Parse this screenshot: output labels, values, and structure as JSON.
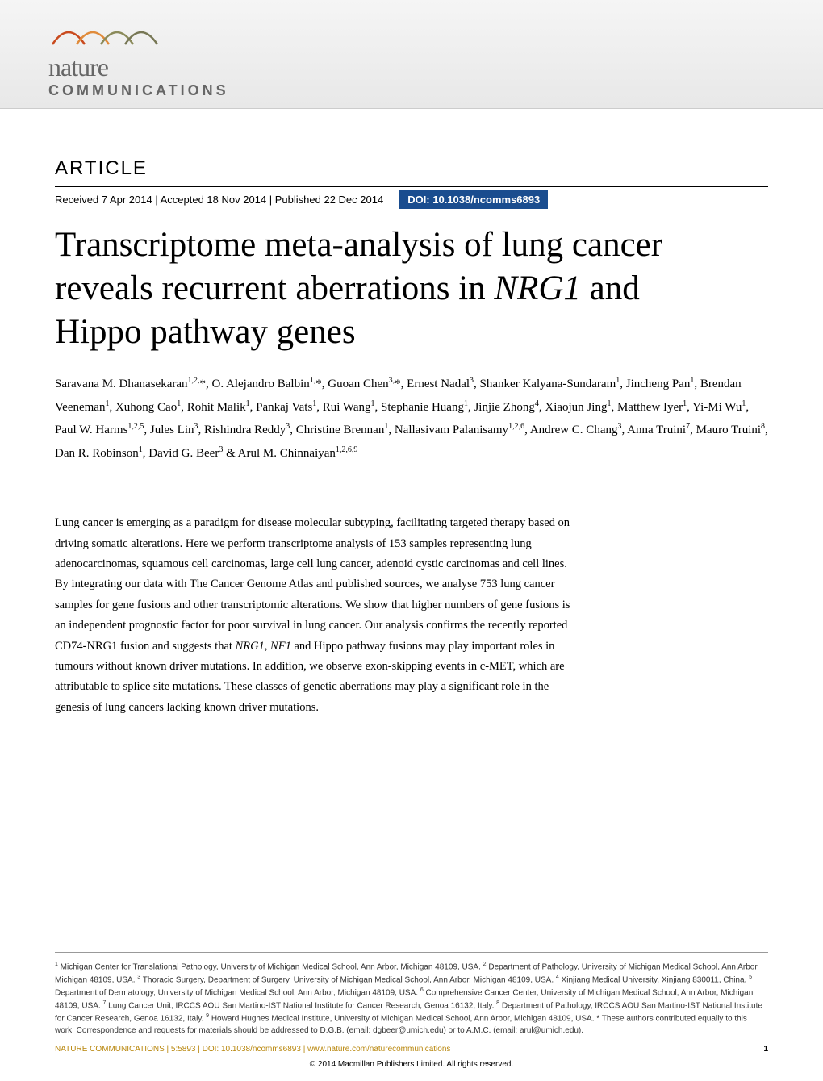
{
  "logo": {
    "top_text": "nature",
    "bottom_text": "COMMUNICATIONS",
    "swoosh_colors": [
      "#c94a1e",
      "#e08b3a",
      "#8a8a5a"
    ]
  },
  "header": {
    "article_label": "ARTICLE",
    "received": "Received 7 Apr 2014",
    "accepted": "Accepted 18 Nov 2014",
    "published": "Published 22 Dec 2014",
    "doi": "DOI: 10.1038/ncomms6893",
    "doi_bg": "#1a4d8f"
  },
  "title": {
    "line1": "Transcriptome meta-analysis of lung cancer",
    "line2_pre": "reveals recurrent aberrations in ",
    "line2_italic": "NRG1",
    "line2_post": " and",
    "line3": "Hippo pathway genes"
  },
  "authors_html": "Saravana M. Dhanasekaran<sup>1,2,</sup>*, O. Alejandro Balbin<sup>1,</sup>*, Guoan Chen<sup>3,</sup>*, Ernest Nadal<sup>3</sup>, Shanker Kalyana-Sundaram<sup>1</sup>, Jincheng Pan<sup>1</sup>, Brendan Veeneman<sup>1</sup>, Xuhong Cao<sup>1</sup>, Rohit Malik<sup>1</sup>, Pankaj Vats<sup>1</sup>, Rui Wang<sup>1</sup>, Stephanie Huang<sup>1</sup>, Jinjie Zhong<sup>4</sup>, Xiaojun Jing<sup>1</sup>, Matthew Iyer<sup>1</sup>, Yi-Mi Wu<sup>1</sup>, Paul W. Harms<sup>1,2,5</sup>, Jules Lin<sup>3</sup>, Rishindra Reddy<sup>3</sup>, Christine Brennan<sup>1</sup>, Nallasivam Palanisamy<sup>1,2,6</sup>, Andrew C. Chang<sup>3</sup>, Anna Truini<sup>7</sup>, Mauro Truini<sup>8</sup>, Dan R. Robinson<sup>1</sup>, David G. Beer<sup>3</sup> & Arul M. Chinnaiyan<sup>1,2,6,9</sup>",
  "abstract": {
    "p1": "Lung cancer is emerging as a paradigm for disease molecular subtyping, facilitating targeted therapy based on driving somatic alterations. Here we perform transcriptome analysis of 153 samples representing lung adenocarcinomas, squamous cell carcinomas, large cell lung cancer, adenoid cystic carcinomas and cell lines. By integrating our data with The Cancer Genome Atlas and published sources, we analyse 753 lung cancer samples for gene fusions and other transcriptomic alterations. We show that higher numbers of gene fusions is an independent prognostic factor for poor survival in lung cancer. Our analysis confirms the recently reported CD74-NRG1 fusion and suggests that ",
    "italic1": "NRG1, NF1",
    "p2": " and Hippo pathway fusions may play important roles in tumours without known driver mutations. In addition, we observe exon-skipping events in c-MET, which are attributable to splice site mutations. These classes of genetic aberrations may play a significant role in the genesis of lung cancers lacking known driver mutations."
  },
  "affiliations_html": "<sup>1</sup> Michigan Center for Translational Pathology, University of Michigan Medical School, Ann Arbor, Michigan 48109, USA. <sup>2</sup> Department of Pathology, University of Michigan Medical School, Ann Arbor, Michigan 48109, USA. <sup>3</sup> Thoracic Surgery, Department of Surgery, University of Michigan Medical School, Ann Arbor, Michigan 48109, USA. <sup>4</sup> Xinjiang Medical University, Xinjiang 830011, China. <sup>5</sup> Department of Dermatology, University of Michigan Medical School, Ann Arbor, Michigan 48109, USA. <sup>6</sup> Comprehensive Cancer Center, University of Michigan Medical School, Ann Arbor, Michigan 48109, USA. <sup>7</sup> Lung Cancer Unit, IRCCS AOU San Martino-IST National Institute for Cancer Research, Genoa 16132, Italy. <sup>8</sup> Department of Pathology, IRCCS AOU San Martino-IST National Institute for Cancer Research, Genoa 16132, Italy. <sup>9</sup> Howard Hughes Medical Institute, University of Michigan Medical School, Ann Arbor, Michigan 48109, USA. * These authors contributed equally to this work. Correspondence and requests for materials should be addressed to D.G.B. (email: dgbeer@umich.edu) or to A.M.C. (email: arul@umich.edu).",
  "footer": {
    "left": "NATURE COMMUNICATIONS | 5:5893 | DOI: 10.1038/ncomms6893 | www.nature.com/naturecommunications",
    "page": "1",
    "copyright": "© 2014 Macmillan Publishers Limited. All rights reserved."
  },
  "colors": {
    "header_bg_top": "#f5f5f5",
    "header_bg_bottom": "#e8e8e8",
    "text": "#000000",
    "logo_grey": "#666666",
    "footer_gold": "#b8860b"
  },
  "typography": {
    "title_fontsize": 43,
    "authors_fontsize": 15,
    "abstract_fontsize": 14.5,
    "affiliations_fontsize": 10,
    "article_label_fontsize": 24,
    "dates_fontsize": 13
  }
}
